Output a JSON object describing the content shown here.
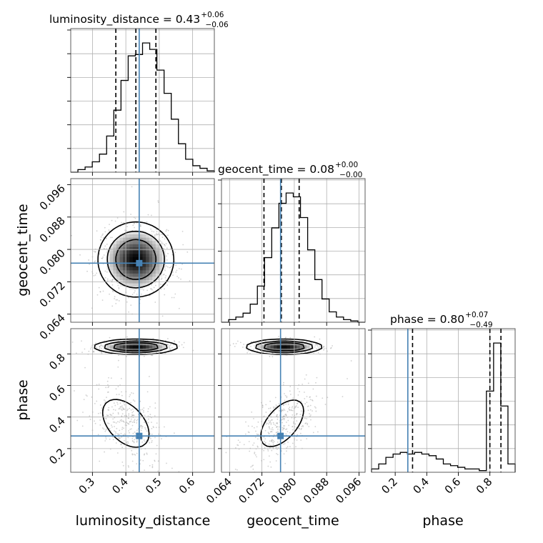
{
  "figure": {
    "type": "corner plot"
  },
  "chart_data": {
    "type": "corner",
    "grid": true,
    "truth_color": "#4682b4",
    "parameters": [
      {
        "name": "luminosity_distance",
        "label": "luminosity_distance",
        "range": [
          0.235,
          0.665
        ],
        "ticks": [
          0.3,
          0.4,
          0.5,
          0.6
        ],
        "tick_labels": [
          "0.3",
          "0.4",
          "0.5",
          "0.6"
        ],
        "title": {
          "main": "luminosity_distance = 0.43",
          "upper": "+0.06",
          "lower": "−0.06"
        },
        "median": 0.43,
        "quantiles": [
          0.37,
          0.43,
          0.49
        ],
        "truth": 0.44
      },
      {
        "name": "geocent_time",
        "label": "geocent_time",
        "range": [
          0.062,
          0.0975
        ],
        "ticks": [
          0.064,
          0.072,
          0.08,
          0.088,
          0.096
        ],
        "tick_labels": [
          "0.064",
          "0.072",
          "0.080",
          "0.088",
          "0.096"
        ],
        "title": {
          "main": "geocent_time = 0.08",
          "upper": "+0.00",
          "lower": "−0.00"
        },
        "median": 0.08,
        "quantiles": [
          0.0725,
          0.0768,
          0.0812
        ],
        "truth": 0.0766
      },
      {
        "name": "phase",
        "label": "phase",
        "range": [
          0.05,
          0.96
        ],
        "ticks": [
          0.2,
          0.4,
          0.6,
          0.8
        ],
        "tick_labels": [
          "0.2",
          "0.4",
          "0.6",
          "0.8"
        ],
        "title": {
          "main": "phase = 0.80",
          "upper": "+0.07",
          "lower": "−0.49"
        },
        "median": 0.8,
        "quantiles": [
          0.31,
          0.8,
          0.87
        ],
        "truth": 0.28
      }
    ],
    "histograms": [
      {
        "parameter": "luminosity_distance",
        "bin_range": [
          0.235,
          0.665
        ],
        "counts": [
          0,
          0.02,
          0.04,
          0.08,
          0.14,
          0.28,
          0.48,
          0.71,
          0.9,
          0.91,
          1.0,
          0.95,
          0.79,
          0.61,
          0.41,
          0.22,
          0.1,
          0.05,
          0.03,
          0.01
        ]
      },
      {
        "parameter": "geocent_time",
        "bin_range": [
          0.062,
          0.0975
        ],
        "counts": [
          0,
          0.02,
          0.04,
          0.07,
          0.14,
          0.28,
          0.5,
          0.73,
          0.92,
          1.0,
          0.97,
          0.81,
          0.56,
          0.33,
          0.18,
          0.08,
          0.04,
          0.02,
          0.01,
          0
        ]
      },
      {
        "parameter": "phase",
        "bin_range": [
          0.05,
          0.96
        ],
        "counts": [
          0.02,
          0.05,
          0.09,
          0.11,
          0.12,
          0.11,
          0.12,
          0.11,
          0.1,
          0.08,
          0.05,
          0.04,
          0.03,
          0.02,
          0.02,
          0.01,
          0.49,
          0.78,
          0.4,
          0.05
        ]
      }
    ],
    "joint_panels": [
      {
        "x": "luminosity_distance",
        "y": "geocent_time",
        "truth": [
          0.44,
          0.0766
        ]
      },
      {
        "x": "luminosity_distance",
        "y": "phase",
        "truth": [
          0.44,
          0.28
        ]
      },
      {
        "x": "geocent_time",
        "y": "phase",
        "truth": [
          0.0766,
          0.28
        ]
      }
    ]
  }
}
